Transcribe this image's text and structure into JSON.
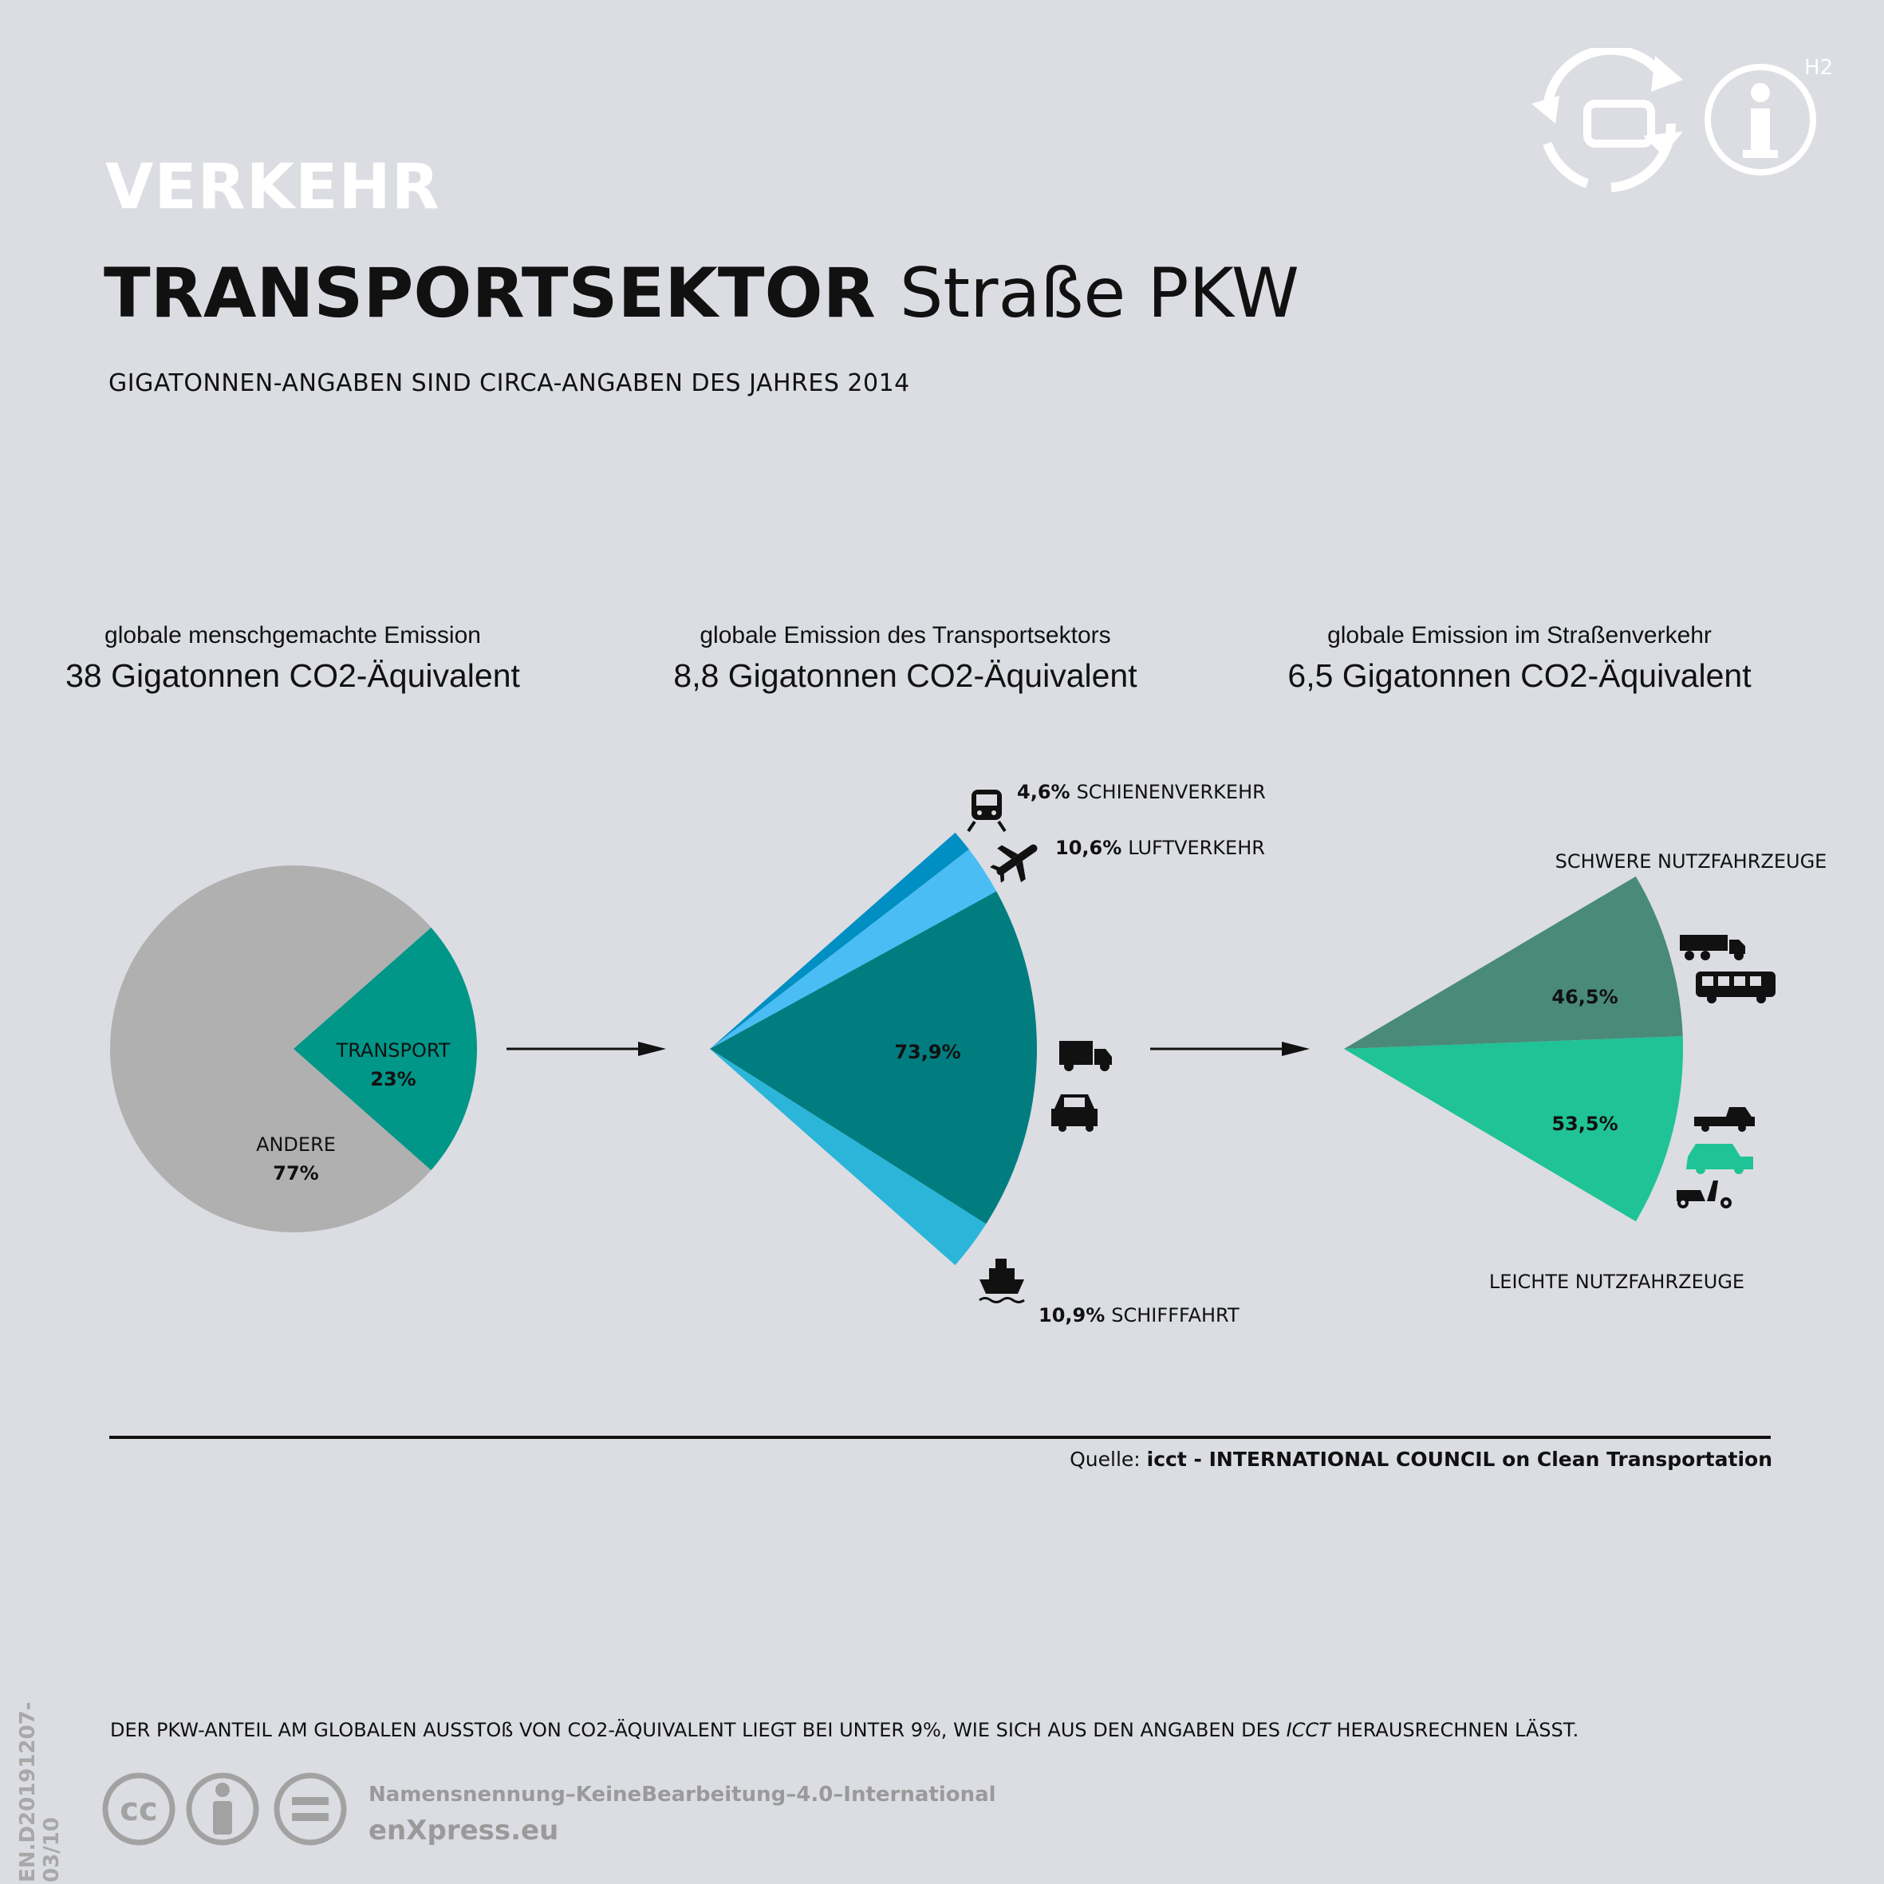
{
  "header": {
    "category": "VERKEHR",
    "title_bold": "TRANSPORTSEKTOR",
    "title_light": "Straße  PKW",
    "subtitle": "GIGATONNEN-ANGABEN SIND CIRCA-ANGABEN DES JAHRES 2014",
    "corner_tag": "H2"
  },
  "groups": [
    {
      "caption": "globale menschgemachte Emission",
      "value": "38 Gigatonnen CO2-Äquivalent"
    },
    {
      "caption": "globale Emission des Transportsektors",
      "value": "8,8 Gigatonnen CO2-Äquivalent"
    },
    {
      "caption": "globale Emission im Straßenverkehr",
      "value": "6,5 Gigatonnen CO2-Äquivalent"
    }
  ],
  "chart_data": [
    {
      "type": "pie",
      "slices": [
        {
          "label": "ANDERE",
          "value_label": "77%",
          "value": 77,
          "color": "#b0b0b0"
        },
        {
          "label": "TRANSPORT",
          "value_label": "23%",
          "value": 23,
          "color": "#009688"
        }
      ]
    },
    {
      "type": "pie",
      "slices": [
        {
          "label": "SCHIENENVERKEHR",
          "value_label": "4,6%",
          "value": 4.6,
          "color": "#008fc3",
          "icon": "train-icon"
        },
        {
          "label": "LUFTVERKEHR",
          "value_label": "10,6%",
          "value": 10.6,
          "color": "#4bbdf5",
          "icon": "airplane-icon"
        },
        {
          "label": "",
          "value_label": "73,9%",
          "value": 73.9,
          "color": "#017d80",
          "icon": "truck-car-icon"
        },
        {
          "label": "SCHIFFFAHRT",
          "value_label": "10,9%",
          "value": 10.9,
          "color": "#2bb5d8",
          "icon": "ship-icon"
        }
      ]
    },
    {
      "type": "pie",
      "slices": [
        {
          "label": "SCHWERE NUTZFAHRZEUGE",
          "value_label": "46,5%",
          "value": 46.5,
          "color": "#4a8a78"
        },
        {
          "label": "LEICHTE NUTZFAHRZEUGE",
          "value_label": "53,5%",
          "value": 53.5,
          "color": "#1fc396"
        }
      ]
    }
  ],
  "footer": {
    "source_prefix": "Quelle: ",
    "source_name": "icct - INTERNATIONAL COUNCIL on Clean Transportation",
    "footnote_a": "DER PKW-ANTEIL AM GLOBALEN  AUSSTOß VON CO2-ÄQUIVALENT LIEGT BEI UNTER 9%, WIE SICH AUS DEN ANGABEN DES ",
    "footnote_em": "ICCT",
    "footnote_b": " HERAUSRECHNEN LÄSST.",
    "license": "Namensnennung–KeineBearbeitung–4.0–International",
    "site": "enXpress.eu",
    "doc_id": "EN.D20191207-03/10"
  }
}
